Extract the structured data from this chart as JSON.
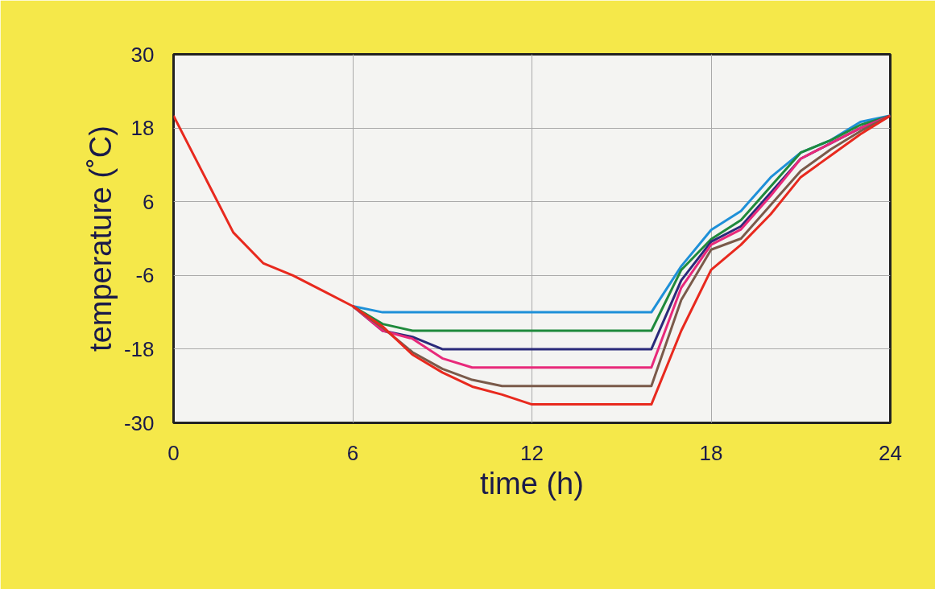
{
  "chart_data": {
    "type": "line",
    "xlabel": "time (h)",
    "ylabel": "temperature (˚C)",
    "x": [
      0,
      2,
      3,
      4,
      5,
      6,
      7,
      8,
      9,
      10,
      11,
      12,
      13,
      14,
      15,
      16,
      17,
      18,
      19,
      20,
      21,
      22,
      23,
      24
    ],
    "xlim": [
      0,
      24
    ],
    "xticks": [
      0,
      6,
      12,
      18,
      24
    ],
    "ylim": [
      -30,
      30
    ],
    "yticks": [
      -30,
      -18,
      -6,
      6,
      18,
      30
    ],
    "grid": true,
    "marker": "none",
    "line_style": "solid",
    "series": [
      {
        "color": "#1e90d8",
        "x": [
          6,
          7,
          8,
          9,
          10,
          11,
          12,
          13,
          14,
          15,
          16,
          17,
          18,
          19,
          20,
          21,
          22,
          23,
          24
        ],
        "values": [
          -11,
          -12,
          -12,
          -12,
          -12,
          -12,
          -12,
          -12,
          -12,
          -12,
          -12,
          -4.5,
          1.4,
          4.5,
          10,
          14,
          16,
          19,
          20
        ]
      },
      {
        "color": "#1f8a3c",
        "x": [
          6,
          7,
          8,
          9,
          10,
          11,
          12,
          13,
          14,
          15,
          16,
          17,
          18,
          19,
          20,
          21,
          22,
          23,
          24
        ],
        "values": [
          -11,
          -13.9,
          -15,
          -15,
          -15,
          -15,
          -15,
          -15,
          -15,
          -15,
          -15,
          -5.1,
          -0.1,
          3,
          8.5,
          14,
          16,
          18.5,
          20
        ]
      },
      {
        "color": "#2a2a7a",
        "x": [
          6,
          7,
          8,
          9,
          10,
          11,
          12,
          13,
          14,
          15,
          16,
          17,
          18,
          19,
          20,
          21,
          22,
          23,
          24
        ],
        "values": [
          -11,
          -15,
          -16,
          -18,
          -18,
          -18,
          -18,
          -18,
          -18,
          -18,
          -18,
          -6.8,
          -0.5,
          2,
          7.5,
          13,
          15.5,
          18,
          20
        ]
      },
      {
        "color": "#e8297a",
        "x": [
          6,
          7,
          8,
          9,
          10,
          11,
          12,
          13,
          14,
          15,
          16,
          17,
          18,
          19,
          20,
          21,
          22,
          23,
          24
        ],
        "values": [
          -11,
          -15,
          -16.3,
          -19.5,
          -21,
          -21,
          -21,
          -21,
          -21,
          -21,
          -21,
          -8,
          -1,
          1.5,
          7,
          13,
          15.5,
          18,
          20
        ]
      },
      {
        "color": "#7a5a4a",
        "x": [
          6,
          7,
          8,
          9,
          10,
          11,
          12,
          13,
          14,
          15,
          16,
          17,
          18,
          19,
          20,
          21,
          22,
          23,
          24
        ],
        "values": [
          -11,
          -14.5,
          -18.5,
          -21.2,
          -23,
          -24,
          -24,
          -24,
          -24,
          -24,
          -24,
          -10,
          -1.8,
          0,
          5.5,
          11,
          14.5,
          17.5,
          20
        ]
      },
      {
        "color": "#e8291e",
        "values": [
          20,
          1,
          -4,
          -6,
          -8.5,
          -11,
          -14.3,
          -18.9,
          -21.8,
          -24.1,
          -25.4,
          -27,
          -27,
          -27,
          -27,
          -27,
          -15,
          -5.1,
          -1,
          4,
          10,
          13.5,
          17,
          20
        ]
      }
    ]
  }
}
